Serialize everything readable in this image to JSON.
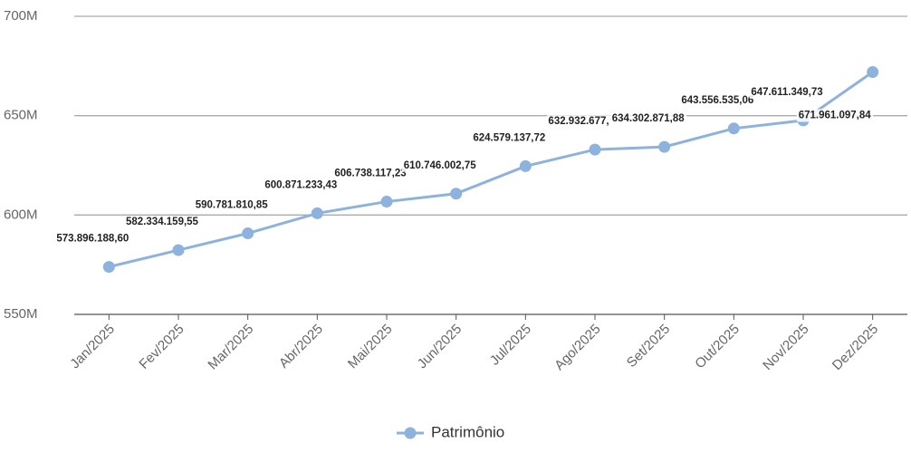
{
  "chart_data": {
    "type": "line",
    "categories": [
      "Jan/2025",
      "Fev/2025",
      "Mar/2025",
      "Abr/2025",
      "Mai/2025",
      "Jun/2025",
      "Jul/2025",
      "Ago/2025",
      "Set/2025",
      "Out/2025",
      "Nov/2025",
      "Dez/2025"
    ],
    "series": [
      {
        "name": "Patrimônio",
        "color": "#8db2de",
        "values": [
          573896188.6,
          582334159.55,
          590781810.85,
          600871233.43,
          606738117.23,
          610746002.75,
          624579137.72,
          632932677.0,
          634302871.88,
          643556535.06,
          647611349.73,
          671961097.84
        ],
        "value_labels": [
          "573.896.188,60",
          "582.334.159,55",
          "590.781.810,85",
          "600.871.233,43",
          "606.738.117,23",
          "610.746.002,75",
          "624.579.137,72",
          "632.932.677,",
          "634.302.871,88",
          "643.556.535,06",
          "647.611.349,73",
          "671.961.097,84"
        ]
      }
    ],
    "ylim": [
      550000000,
      700000000
    ],
    "yticks": [
      {
        "value": 550000000,
        "label": "550M"
      },
      {
        "value": 600000000,
        "label": "600M"
      },
      {
        "value": 650000000,
        "label": "650M"
      },
      {
        "value": 700000000,
        "label": "700M"
      }
    ],
    "grid": true,
    "legend": "bottom"
  }
}
